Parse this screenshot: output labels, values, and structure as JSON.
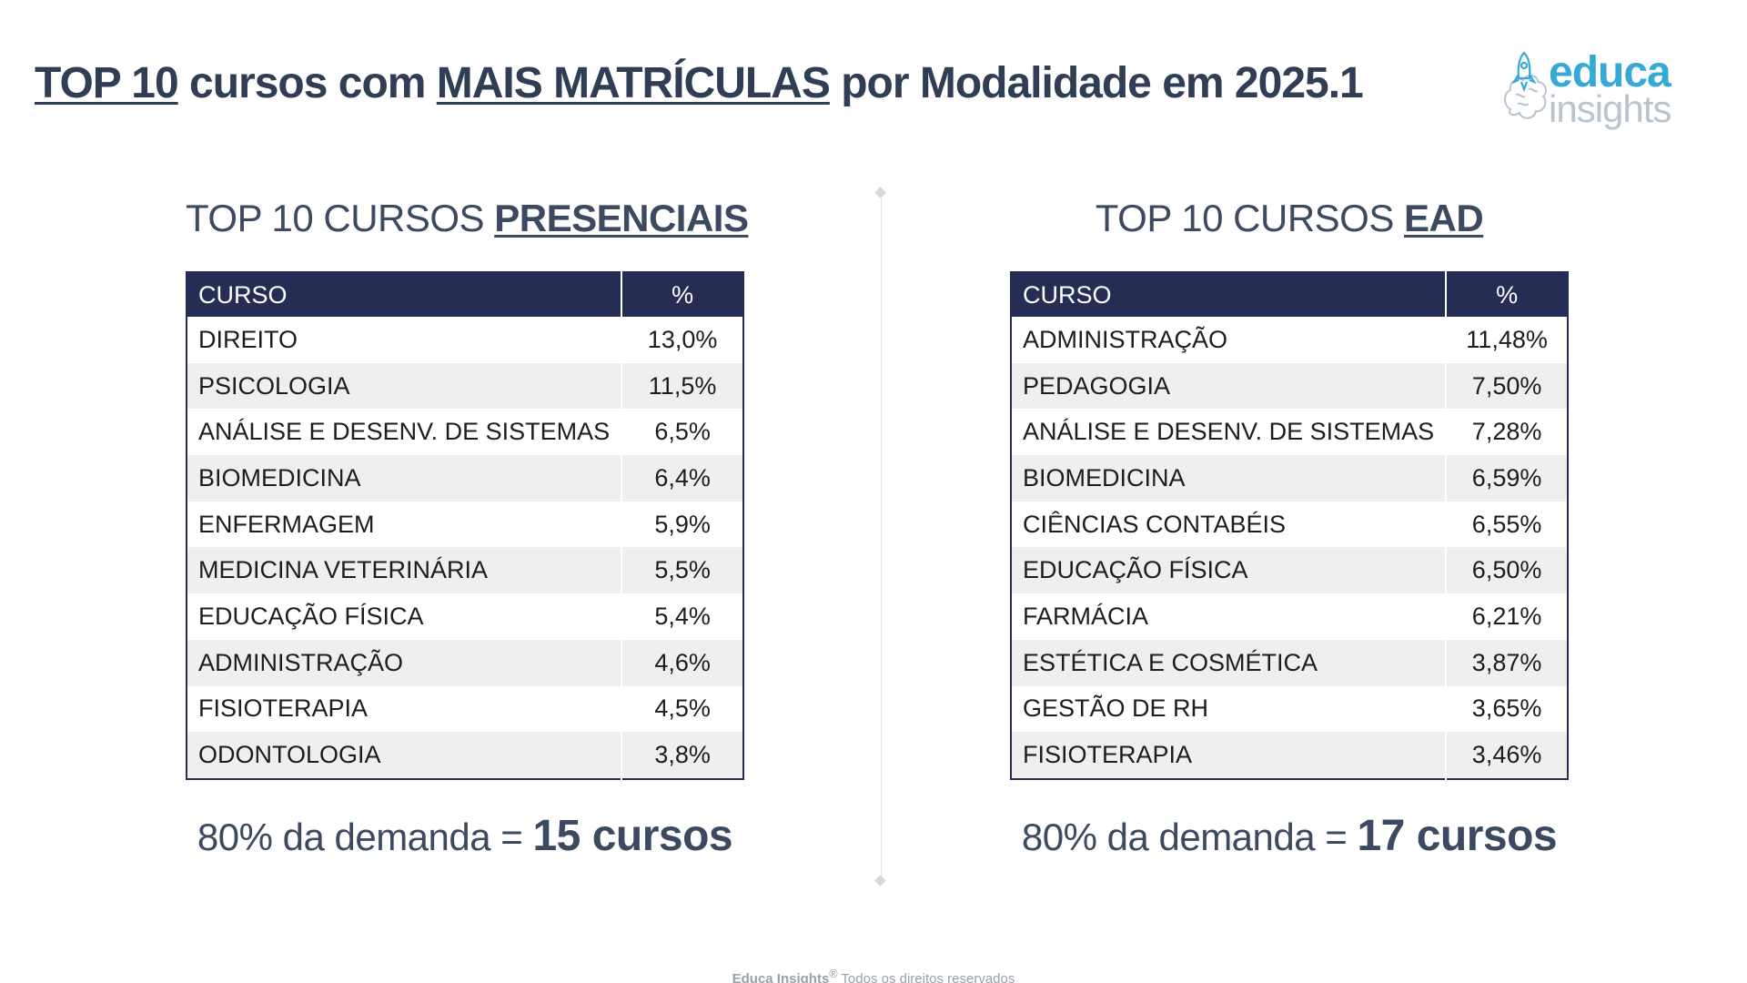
{
  "title": {
    "part1": "TOP 10",
    "part2": " cursos com ",
    "part3": "MAIS MATRÍCULAS",
    "part4": " por Modalidade em 2025.1"
  },
  "logo": {
    "line1": "educa",
    "line2": "insights",
    "icon": "rocket-brain-icon"
  },
  "presencial": {
    "heading_prefix": "TOP 10 CURSOS ",
    "heading_highlight": "PRESENCIAIS",
    "col_course": "CURSO",
    "col_pct": "%",
    "rows": [
      {
        "course": "DIREITO",
        "pct": "13,0%"
      },
      {
        "course": "PSICOLOGIA",
        "pct": "11,5%"
      },
      {
        "course": "ANÁLISE E DESENV. DE SISTEMAS",
        "pct": "6,5%"
      },
      {
        "course": "BIOMEDICINA",
        "pct": "6,4%"
      },
      {
        "course": "ENFERMAGEM",
        "pct": "5,9%"
      },
      {
        "course": "MEDICINA VETERINÁRIA",
        "pct": "5,5%"
      },
      {
        "course": "EDUCAÇÃO FÍSICA",
        "pct": "5,4%"
      },
      {
        "course": "ADMINISTRAÇÃO",
        "pct": "4,6%"
      },
      {
        "course": "FISIOTERAPIA",
        "pct": "4,5%"
      },
      {
        "course": "ODONTOLOGIA",
        "pct": "3,8%"
      }
    ],
    "demand_prefix": "80% da demanda = ",
    "demand_value": "15 cursos"
  },
  "ead": {
    "heading_prefix": "TOP 10 CURSOS ",
    "heading_highlight": "EAD",
    "col_course": "CURSO",
    "col_pct": "%",
    "rows": [
      {
        "course": "ADMINISTRAÇÃO",
        "pct": "11,48%"
      },
      {
        "course": "PEDAGOGIA",
        "pct": "7,50%"
      },
      {
        "course": "ANÁLISE E DESENV. DE SISTEMAS",
        "pct": "7,28%"
      },
      {
        "course": "BIOMEDICINA",
        "pct": "6,59%"
      },
      {
        "course": "CIÊNCIAS CONTABÉIS",
        "pct": "6,55%"
      },
      {
        "course": "EDUCAÇÃO FÍSICA",
        "pct": "6,50%"
      },
      {
        "course": "FARMÁCIA",
        "pct": "6,21%"
      },
      {
        "course": "ESTÉTICA E COSMÉTICA",
        "pct": "3,87%"
      },
      {
        "course": "GESTÃO DE RH",
        "pct": "3,65%"
      },
      {
        "course": "FISIOTERAPIA",
        "pct": "3,46%"
      }
    ],
    "demand_prefix": "80% da demanda = ",
    "demand_value": "17 cursos"
  },
  "footer": {
    "brand": "Educa Insights",
    "mark": "®",
    "text": " Todos os direitos reservados"
  },
  "colors": {
    "header_navy": "#262d55",
    "title_text": "#2f3d55",
    "logo_blue": "#37a9d6",
    "logo_gray": "#b9c4cf",
    "row_alt": "#efefef"
  }
}
